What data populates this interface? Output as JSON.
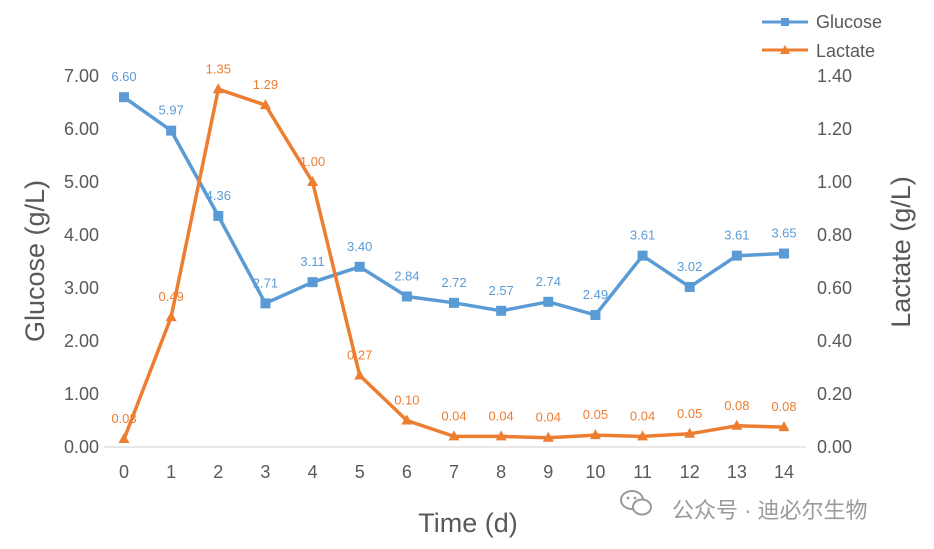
{
  "chart_data": {
    "type": "line",
    "x": [
      0,
      1,
      2,
      3,
      4,
      5,
      6,
      7,
      8,
      9,
      10,
      11,
      12,
      13,
      14
    ],
    "x_ticks": [
      "0",
      "1",
      "2",
      "3",
      "4",
      "5",
      "6",
      "7",
      "8",
      "9",
      "10",
      "11",
      "12",
      "13",
      "14"
    ],
    "xlabel": "Time (d)",
    "ylabel_left": "Glucose (g/L)",
    "ylabel_right": "Lactate (g/L)",
    "y_left_ticks": [
      "0.00",
      "1.00",
      "2.00",
      "3.00",
      "4.00",
      "5.00",
      "6.00",
      "7.00"
    ],
    "y_right_ticks": [
      "0.00",
      "0.20",
      "0.40",
      "0.60",
      "0.80",
      "1.00",
      "1.20",
      "1.40"
    ],
    "ylim_left": [
      0,
      7
    ],
    "ylim_right": [
      0,
      1.4
    ],
    "grid": false,
    "legend_position": "top-right",
    "series": [
      {
        "name": "Glucose",
        "axis": "left",
        "marker": "square",
        "color": "#5B9BD5",
        "values": [
          6.6,
          5.97,
          4.36,
          2.71,
          3.11,
          3.4,
          2.84,
          2.72,
          2.57,
          2.74,
          2.49,
          3.61,
          3.02,
          3.61,
          3.65
        ],
        "labels": [
          "6.60",
          "5.97",
          "4.36",
          "2.71",
          "3.11",
          "3.40",
          "2.84",
          "2.72",
          "2.57",
          "2.74",
          "2.49",
          "3.61",
          "3.02",
          "3.61",
          "3.65"
        ]
      },
      {
        "name": "Lactate",
        "axis": "right",
        "marker": "triangle",
        "color": "#ED7D31",
        "values": [
          0.03,
          0.49,
          1.35,
          1.29,
          1.0,
          0.27,
          0.1,
          0.04,
          0.04,
          0.035,
          0.045,
          0.04,
          0.05,
          0.08,
          0.075
        ],
        "labels": [
          "0.03",
          "0.49",
          "1.35",
          "1.29",
          "1.00",
          "0.27",
          "0.10",
          "0.04",
          "0.04",
          "0.04",
          "0.05",
          "0.04",
          "0.05",
          "0.08",
          "0.08"
        ]
      }
    ]
  },
  "watermark": {
    "text": "公众号 · 迪必尔生物",
    "icon": "wechat-icon"
  }
}
